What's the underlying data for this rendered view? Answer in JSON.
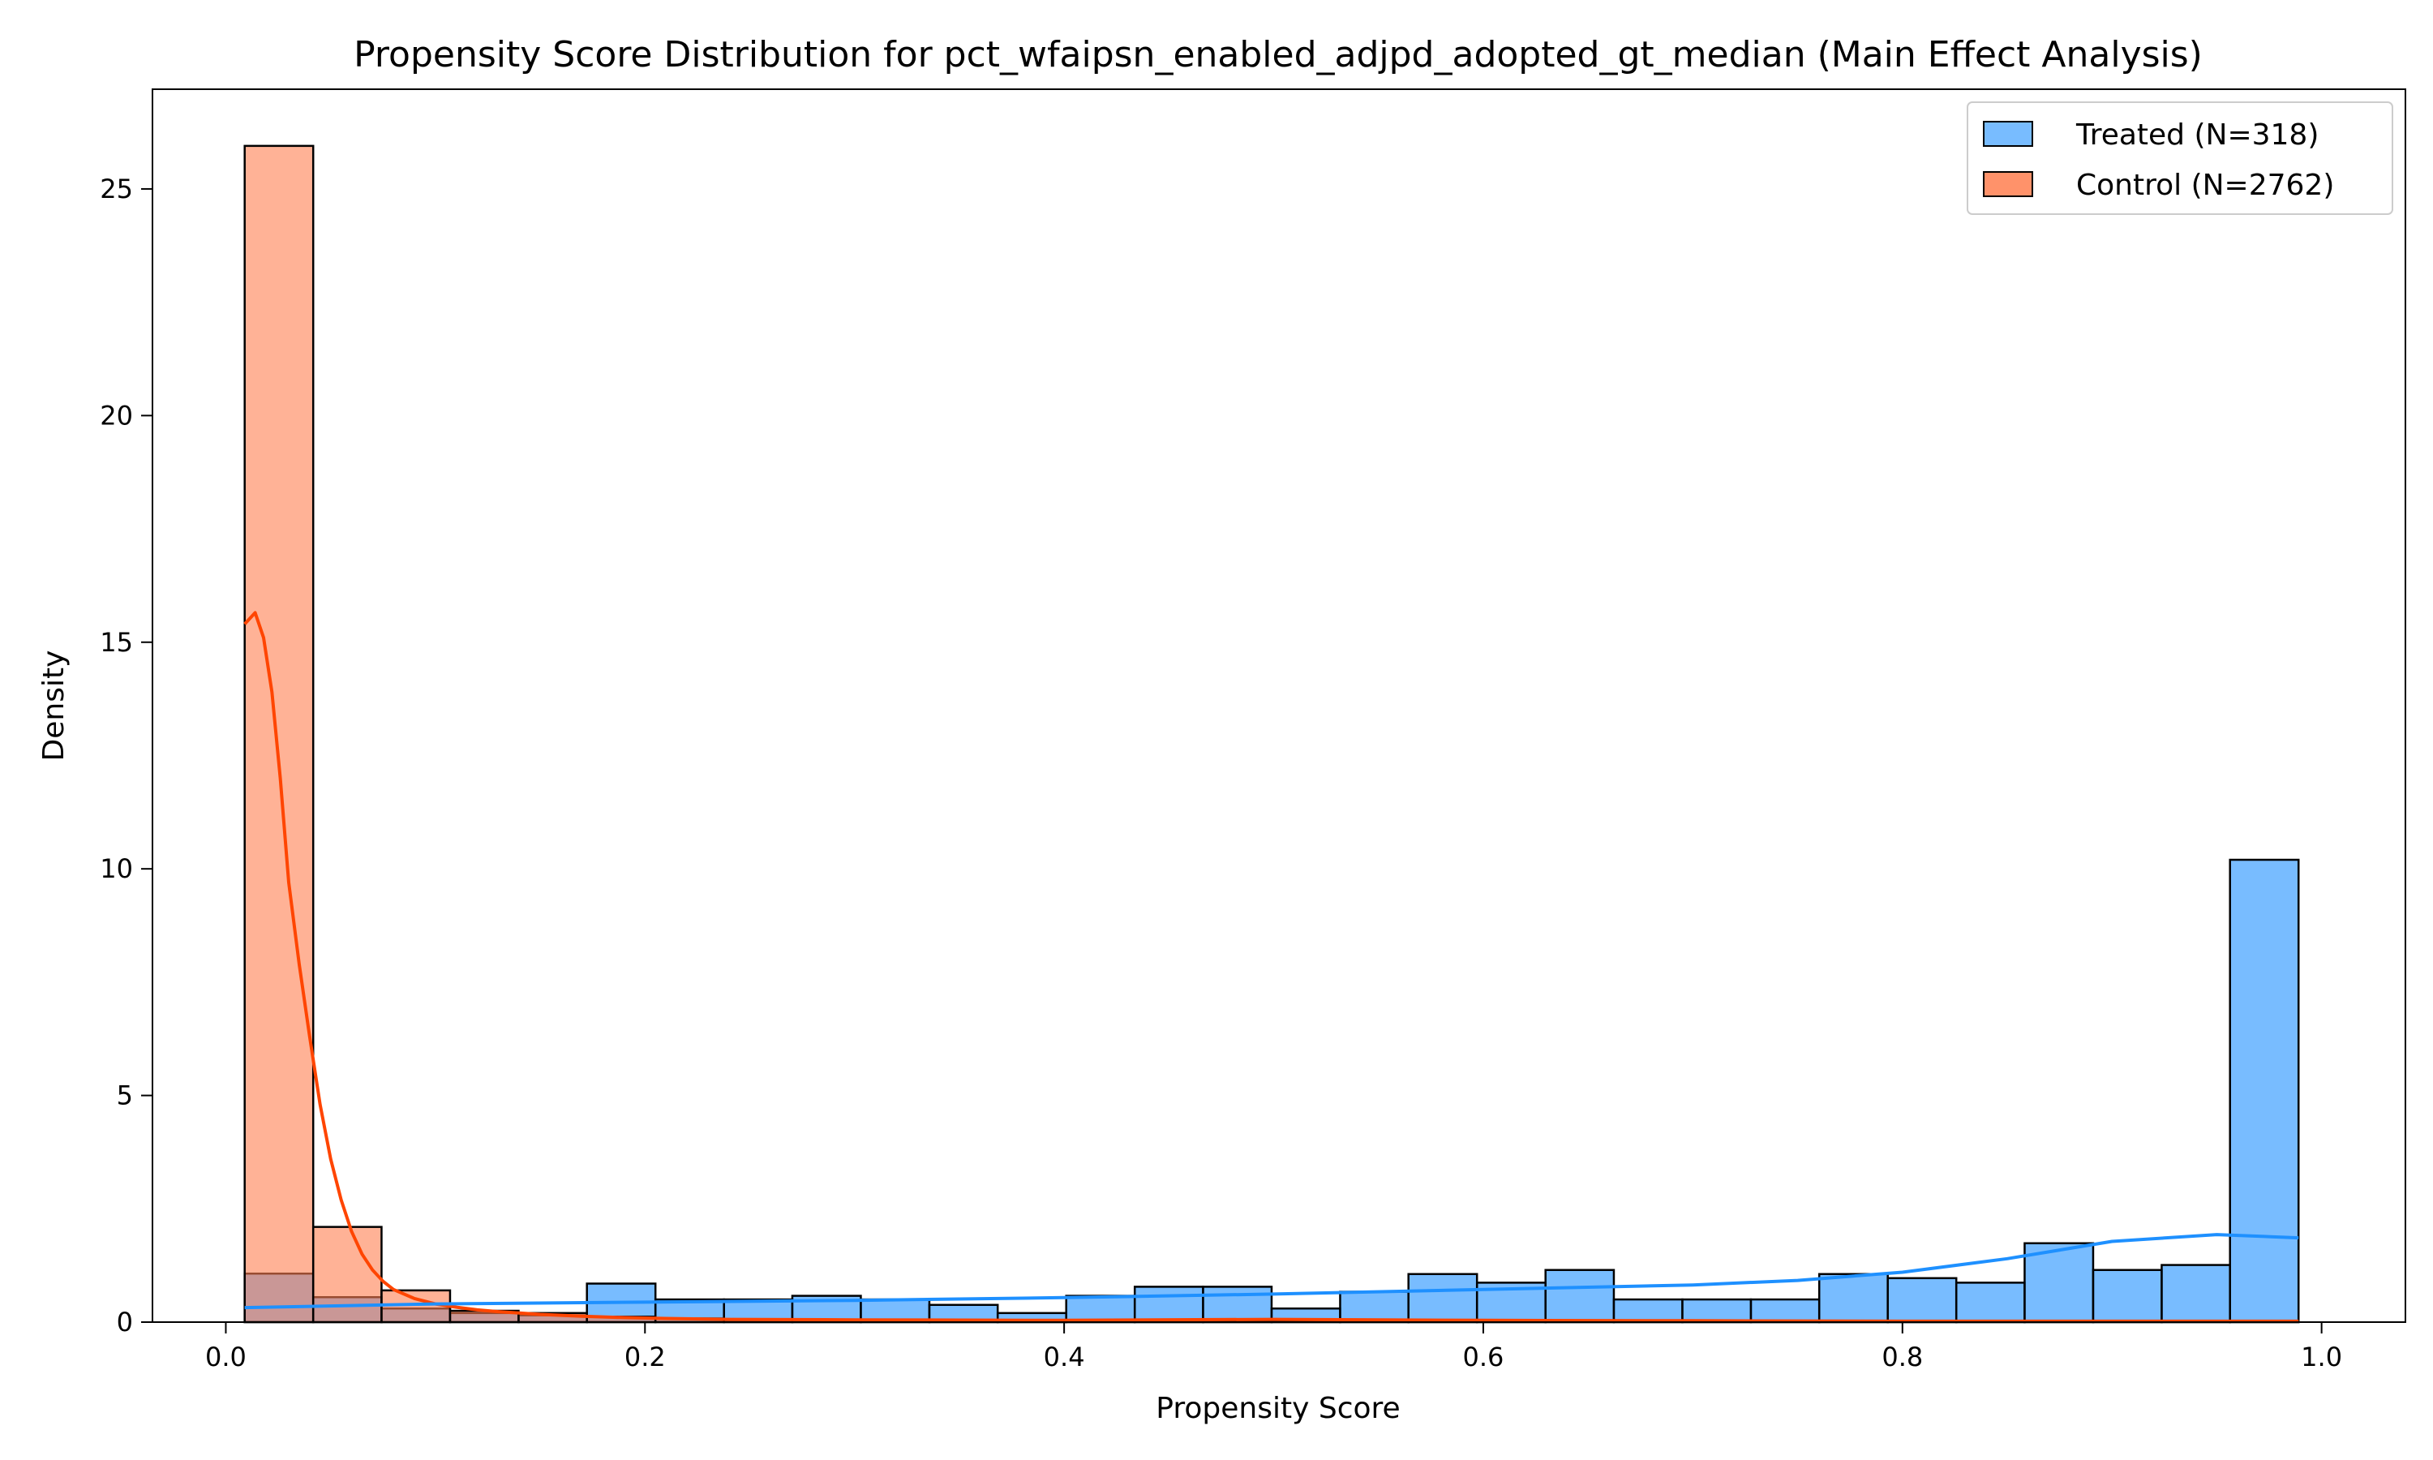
{
  "chart_data": {
    "type": "histogram",
    "title": "Propensity Score Distribution for pct_wfaipsn_enabled_adjpd_adopted_gt_median (Main Effect Analysis)",
    "xlabel": "Propensity Score",
    "ylabel": "Density",
    "xlim": [
      -0.035,
      1.04
    ],
    "ylim": [
      0,
      27.2
    ],
    "xticks": [
      0.0,
      0.2,
      0.4,
      0.6,
      0.8,
      1.0
    ],
    "xtick_labels": [
      "0.0",
      "0.2",
      "0.4",
      "0.6",
      "0.8",
      "1.0"
    ],
    "yticks": [
      0,
      5,
      10,
      15,
      20,
      25
    ],
    "ytick_labels": [
      "0",
      "5",
      "10",
      "15",
      "20",
      "25"
    ],
    "grid": false,
    "legend_position": "top-right",
    "bin_edges": [
      0.009,
      0.0417,
      0.0743,
      0.107,
      0.1397,
      0.1723,
      0.205,
      0.2377,
      0.2703,
      0.303,
      0.3357,
      0.3683,
      0.401,
      0.4337,
      0.4663,
      0.499,
      0.5317,
      0.5643,
      0.597,
      0.6297,
      0.6623,
      0.695,
      0.7277,
      0.7603,
      0.793,
      0.8257,
      0.8583,
      0.891,
      0.9237,
      0.9563,
      0.989
    ],
    "series": [
      {
        "name": "Control (N=2762)",
        "color": "#ff7f50",
        "edge_color": "#000000",
        "densities": [
          25.95,
          2.1,
          0.7,
          0.25,
          0.2,
          0.12,
          0.08,
          0.06,
          0.05,
          0.04,
          0.03,
          0.02,
          0.03,
          0.03,
          0.04,
          0.03,
          0.02,
          0.02,
          0.02,
          0.02,
          0.02,
          0.01,
          0.01,
          0.01,
          0.01,
          0.01,
          0.01,
          0.01,
          0.01,
          0.01
        ],
        "kde_x": [
          0.009,
          0.014,
          0.018,
          0.022,
          0.026,
          0.03,
          0.035,
          0.04,
          0.045,
          0.05,
          0.055,
          0.06,
          0.065,
          0.07,
          0.075,
          0.08,
          0.09,
          0.1,
          0.11,
          0.12,
          0.13,
          0.14,
          0.15,
          0.17,
          0.19,
          0.21,
          0.24,
          0.3,
          0.4,
          0.5,
          0.6,
          0.7,
          0.8,
          0.9,
          0.989
        ],
        "kde_y": [
          15.4,
          15.65,
          15.1,
          13.9,
          12.0,
          9.7,
          7.9,
          6.3,
          4.8,
          3.6,
          2.7,
          2.0,
          1.5,
          1.15,
          0.9,
          0.72,
          0.52,
          0.4,
          0.33,
          0.27,
          0.23,
          0.2,
          0.17,
          0.13,
          0.1,
          0.08,
          0.06,
          0.05,
          0.04,
          0.06,
          0.04,
          0.03,
          0.02,
          0.02,
          0.02
        ]
      },
      {
        "name": "Treated (N=318)",
        "color": "#1e90ff",
        "edge_color": "#000000",
        "densities": [
          1.07,
          0.55,
          0.3,
          0.2,
          0.15,
          0.85,
          0.5,
          0.5,
          0.58,
          0.5,
          0.38,
          0.2,
          0.58,
          0.78,
          0.78,
          0.3,
          0.67,
          1.06,
          0.87,
          1.15,
          0.5,
          0.5,
          0.5,
          1.06,
          0.97,
          0.87,
          1.74,
          1.15,
          1.26,
          10.2
        ],
        "kde_x": [
          0.009,
          0.1,
          0.2,
          0.3,
          0.4,
          0.5,
          0.6,
          0.7,
          0.75,
          0.8,
          0.85,
          0.9,
          0.95,
          0.989
        ],
        "kde_y": [
          0.32,
          0.4,
          0.44,
          0.48,
          0.54,
          0.62,
          0.72,
          0.82,
          0.92,
          1.1,
          1.4,
          1.78,
          1.93,
          1.86
        ]
      }
    ]
  }
}
